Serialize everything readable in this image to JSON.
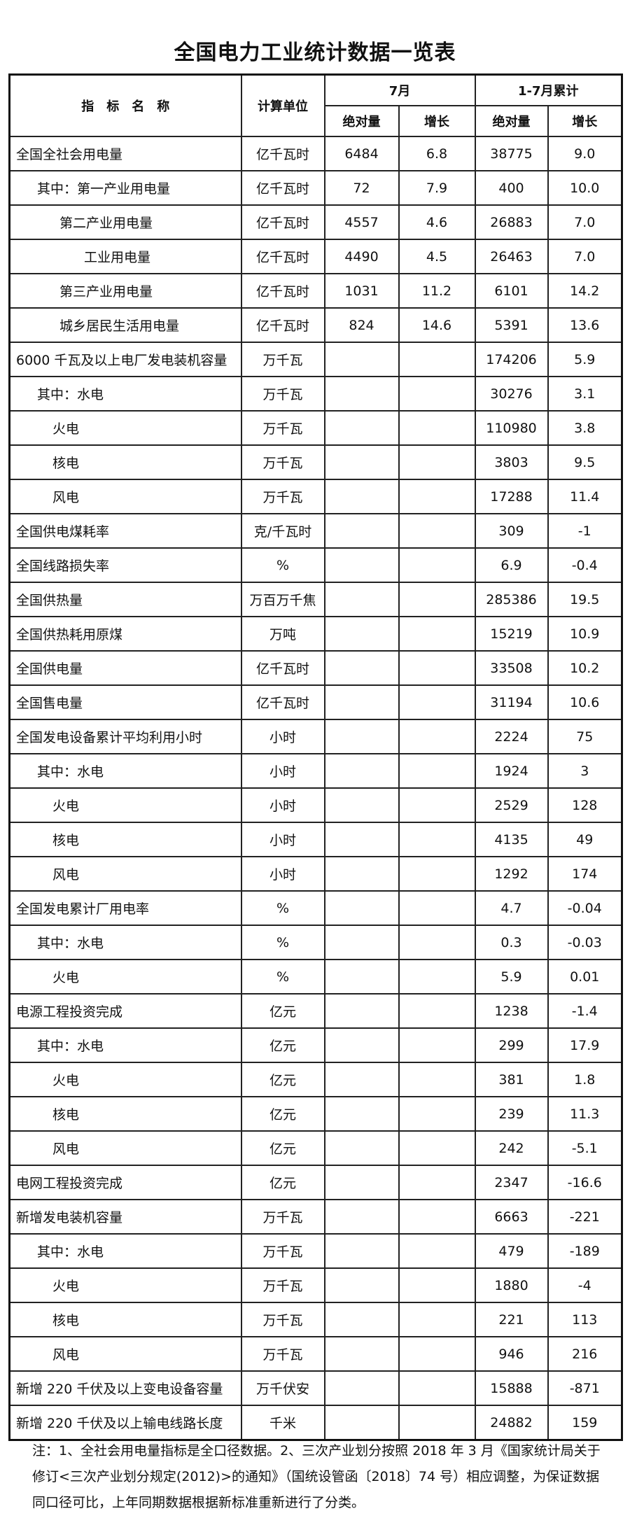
{
  "title": "全国电力工业统计数据一览表",
  "header": {
    "name": "指　标　名　称",
    "unit": "计算单位",
    "july": "7月",
    "ytd": "1-7月累计",
    "abs": "绝对量",
    "growth": "增长"
  },
  "rows": [
    {
      "name": "全国全社会用电量",
      "indent": 0,
      "unit": "亿千瓦时",
      "m_abs": "6484",
      "m_gr": "6.8",
      "y_abs": "38775",
      "y_gr": "9.0"
    },
    {
      "name": "其中：第一产业用电量",
      "indent": 1,
      "unit": "亿千瓦时",
      "m_abs": "72",
      "m_gr": "7.9",
      "y_abs": "400",
      "y_gr": "10.0"
    },
    {
      "name": "第二产业用电量",
      "indent": 2,
      "unit": "亿千瓦时",
      "m_abs": "4557",
      "m_gr": "4.6",
      "y_abs": "26883",
      "y_gr": "7.0"
    },
    {
      "name": "工业用电量",
      "indent": 3,
      "unit": "亿千瓦时",
      "m_abs": "4490",
      "m_gr": "4.5",
      "y_abs": "26463",
      "y_gr": "7.0"
    },
    {
      "name": "第三产业用电量",
      "indent": 2,
      "unit": "亿千瓦时",
      "m_abs": "1031",
      "m_gr": "11.2",
      "y_abs": "6101",
      "y_gr": "14.2"
    },
    {
      "name": "城乡居民生活用电量",
      "indent": 2,
      "unit": "亿千瓦时",
      "m_abs": "824",
      "m_gr": "14.6",
      "y_abs": "5391",
      "y_gr": "13.6"
    },
    {
      "name": "6000 千瓦及以上电厂发电装机容量",
      "indent": 0,
      "unit": "万千瓦",
      "m_abs": "",
      "m_gr": "",
      "y_abs": "174206",
      "y_gr": "5.9"
    },
    {
      "name": "其中：水电",
      "indent": 1,
      "unit": "万千瓦",
      "m_abs": "",
      "m_gr": "",
      "y_abs": "30276",
      "y_gr": "3.1"
    },
    {
      "name": "火电",
      "indent": 4,
      "unit": "万千瓦",
      "m_abs": "",
      "m_gr": "",
      "y_abs": "110980",
      "y_gr": "3.8"
    },
    {
      "name": "核电",
      "indent": 4,
      "unit": "万千瓦",
      "m_abs": "",
      "m_gr": "",
      "y_abs": "3803",
      "y_gr": "9.5"
    },
    {
      "name": "风电",
      "indent": 4,
      "unit": "万千瓦",
      "m_abs": "",
      "m_gr": "",
      "y_abs": "17288",
      "y_gr": "11.4"
    },
    {
      "name": "全国供电煤耗率",
      "indent": 0,
      "unit": "克/千瓦时",
      "m_abs": "",
      "m_gr": "",
      "y_abs": "309",
      "y_gr": "-1"
    },
    {
      "name": "全国线路损失率",
      "indent": 0,
      "unit": "%",
      "m_abs": "",
      "m_gr": "",
      "y_abs": "6.9",
      "y_gr": "-0.4"
    },
    {
      "name": "全国供热量",
      "indent": 0,
      "unit": "万百万千焦",
      "m_abs": "",
      "m_gr": "",
      "y_abs": "285386",
      "y_gr": "19.5"
    },
    {
      "name": "全国供热耗用原煤",
      "indent": 0,
      "unit": "万吨",
      "m_abs": "",
      "m_gr": "",
      "y_abs": "15219",
      "y_gr": "10.9"
    },
    {
      "name": "全国供电量",
      "indent": 0,
      "unit": "亿千瓦时",
      "m_abs": "",
      "m_gr": "",
      "y_abs": "33508",
      "y_gr": "10.2"
    },
    {
      "name": "全国售电量",
      "indent": 0,
      "unit": "亿千瓦时",
      "m_abs": "",
      "m_gr": "",
      "y_abs": "31194",
      "y_gr": "10.6"
    },
    {
      "name": "全国发电设备累计平均利用小时",
      "indent": 0,
      "unit": "小时",
      "m_abs": "",
      "m_gr": "",
      "y_abs": "2224",
      "y_gr": "75"
    },
    {
      "name": "其中：水电",
      "indent": 1,
      "unit": "小时",
      "m_abs": "",
      "m_gr": "",
      "y_abs": "1924",
      "y_gr": "3"
    },
    {
      "name": "火电",
      "indent": 4,
      "unit": "小时",
      "m_abs": "",
      "m_gr": "",
      "y_abs": "2529",
      "y_gr": "128"
    },
    {
      "name": "核电",
      "indent": 4,
      "unit": "小时",
      "m_abs": "",
      "m_gr": "",
      "y_abs": "4135",
      "y_gr": "49"
    },
    {
      "name": "风电",
      "indent": 4,
      "unit": "小时",
      "m_abs": "",
      "m_gr": "",
      "y_abs": "1292",
      "y_gr": "174"
    },
    {
      "name": "全国发电累计厂用电率",
      "indent": 0,
      "unit": "%",
      "m_abs": "",
      "m_gr": "",
      "y_abs": "4.7",
      "y_gr": "-0.04"
    },
    {
      "name": "其中：水电",
      "indent": 1,
      "unit": "%",
      "m_abs": "",
      "m_gr": "",
      "y_abs": "0.3",
      "y_gr": "-0.03"
    },
    {
      "name": "火电",
      "indent": 4,
      "unit": "%",
      "m_abs": "",
      "m_gr": "",
      "y_abs": "5.9",
      "y_gr": "0.01"
    },
    {
      "name": "电源工程投资完成",
      "indent": 0,
      "unit": "亿元",
      "m_abs": "",
      "m_gr": "",
      "y_abs": "1238",
      "y_gr": "-1.4"
    },
    {
      "name": "其中：水电",
      "indent": 1,
      "unit": "亿元",
      "m_abs": "",
      "m_gr": "",
      "y_abs": "299",
      "y_gr": "17.9"
    },
    {
      "name": "火电",
      "indent": 4,
      "unit": "亿元",
      "m_abs": "",
      "m_gr": "",
      "y_abs": "381",
      "y_gr": "1.8"
    },
    {
      "name": "核电",
      "indent": 4,
      "unit": "亿元",
      "m_abs": "",
      "m_gr": "",
      "y_abs": "239",
      "y_gr": "11.3"
    },
    {
      "name": "风电",
      "indent": 4,
      "unit": "亿元",
      "m_abs": "",
      "m_gr": "",
      "y_abs": "242",
      "y_gr": "-5.1"
    },
    {
      "name": "电网工程投资完成",
      "indent": 0,
      "unit": "亿元",
      "m_abs": "",
      "m_gr": "",
      "y_abs": "2347",
      "y_gr": "-16.6"
    },
    {
      "name": "新增发电装机容量",
      "indent": 0,
      "unit": "万千瓦",
      "m_abs": "",
      "m_gr": "",
      "y_abs": "6663",
      "y_gr": "-221"
    },
    {
      "name": "其中：水电",
      "indent": 1,
      "unit": "万千瓦",
      "m_abs": "",
      "m_gr": "",
      "y_abs": "479",
      "y_gr": "-189"
    },
    {
      "name": "火电",
      "indent": 4,
      "unit": "万千瓦",
      "m_abs": "",
      "m_gr": "",
      "y_abs": "1880",
      "y_gr": "-4"
    },
    {
      "name": "核电",
      "indent": 4,
      "unit": "万千瓦",
      "m_abs": "",
      "m_gr": "",
      "y_abs": "221",
      "y_gr": "113"
    },
    {
      "name": "风电",
      "indent": 4,
      "unit": "万千瓦",
      "m_abs": "",
      "m_gr": "",
      "y_abs": "946",
      "y_gr": "216"
    },
    {
      "name": "新增 220 千伏及以上变电设备容量",
      "indent": 0,
      "unit": "万千伏安",
      "m_abs": "",
      "m_gr": "",
      "y_abs": "15888",
      "y_gr": "-871"
    },
    {
      "name": "新增 220 千伏及以上输电线路长度",
      "indent": 0,
      "unit": "千米",
      "m_abs": "",
      "m_gr": "",
      "y_abs": "24882",
      "y_gr": "159"
    }
  ],
  "note": "注：1、全社会用电量指标是全口径数据。2、三次产业划分按照 2018 年 3 月《国家统计局关于修订<三次产业划分规定(2012)>的通知》（国统设管函〔2018〕74 号）相应调整，为保证数据同口径可比，上年同期数据根据新标准重新进行了分类。"
}
